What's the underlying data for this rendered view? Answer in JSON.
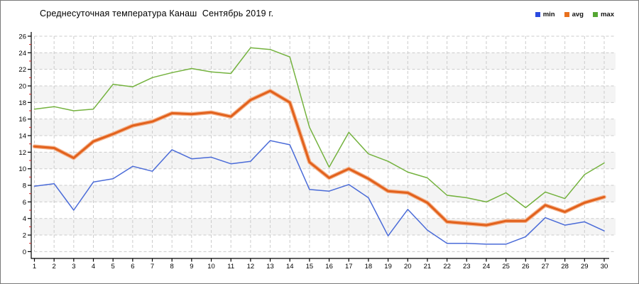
{
  "window": {
    "background": "#ffffff",
    "border_color": "#7a7a7a"
  },
  "chart_data": {
    "type": "line",
    "title": "Среднесуточная температура Канаш  Сентябрь 2019 г.",
    "xlabel": "",
    "ylabel": "",
    "x": [
      1,
      2,
      3,
      4,
      5,
      6,
      7,
      8,
      9,
      10,
      11,
      12,
      13,
      14,
      15,
      16,
      17,
      18,
      19,
      20,
      21,
      22,
      23,
      24,
      25,
      26,
      27,
      28,
      29,
      30
    ],
    "series": [
      {
        "name": "min",
        "color": "#4a6bd8",
        "legend_color": "#2b4be0",
        "width": 1.5,
        "values": [
          7.9,
          8.2,
          5.0,
          8.4,
          8.8,
          10.3,
          9.7,
          12.3,
          11.2,
          11.4,
          10.6,
          10.9,
          13.4,
          12.9,
          7.5,
          7.3,
          8.1,
          6.5,
          1.9,
          5.1,
          2.6,
          1.0,
          1.0,
          0.9,
          0.9,
          1.8,
          4.1,
          3.2,
          3.6,
          2.5
        ]
      },
      {
        "name": "avg",
        "color": "#e2611c",
        "legend_color": "#e8701e",
        "halo_color": "#f4b38c",
        "width": 3.0,
        "values": [
          12.7,
          12.5,
          11.3,
          13.3,
          14.2,
          15.2,
          15.7,
          16.7,
          16.6,
          16.8,
          16.3,
          18.3,
          19.4,
          18.0,
          10.8,
          8.9,
          10.0,
          8.8,
          7.3,
          7.1,
          5.9,
          3.6,
          3.4,
          3.2,
          3.7,
          3.7,
          5.6,
          4.8,
          5.9,
          6.6
        ]
      },
      {
        "name": "max",
        "color": "#74b23e",
        "legend_color": "#55a633",
        "width": 1.5,
        "values": [
          17.2,
          17.5,
          17.0,
          17.2,
          20.2,
          19.9,
          21.0,
          21.6,
          22.1,
          21.7,
          21.5,
          24.6,
          24.4,
          23.5,
          15.0,
          10.2,
          14.4,
          11.8,
          10.9,
          9.6,
          8.9,
          6.8,
          6.5,
          6.0,
          7.1,
          5.3,
          7.2,
          6.4,
          9.3,
          10.7
        ]
      }
    ],
    "ylim": [
      0,
      26
    ],
    "y_tick_step": 2,
    "y_tick_labels": [
      "0",
      "2",
      "4",
      "6",
      "8",
      "10",
      "12",
      "14",
      "16",
      "18",
      "20",
      "22",
      "24",
      "26"
    ],
    "grid": true,
    "grid_color": "#cbcbcb",
    "band_color": "#f4f4f4",
    "axis_color": "#000000",
    "minor_tick_color": "#cc2020",
    "tick_label_color": "#000000",
    "legend_position": "top-right"
  }
}
